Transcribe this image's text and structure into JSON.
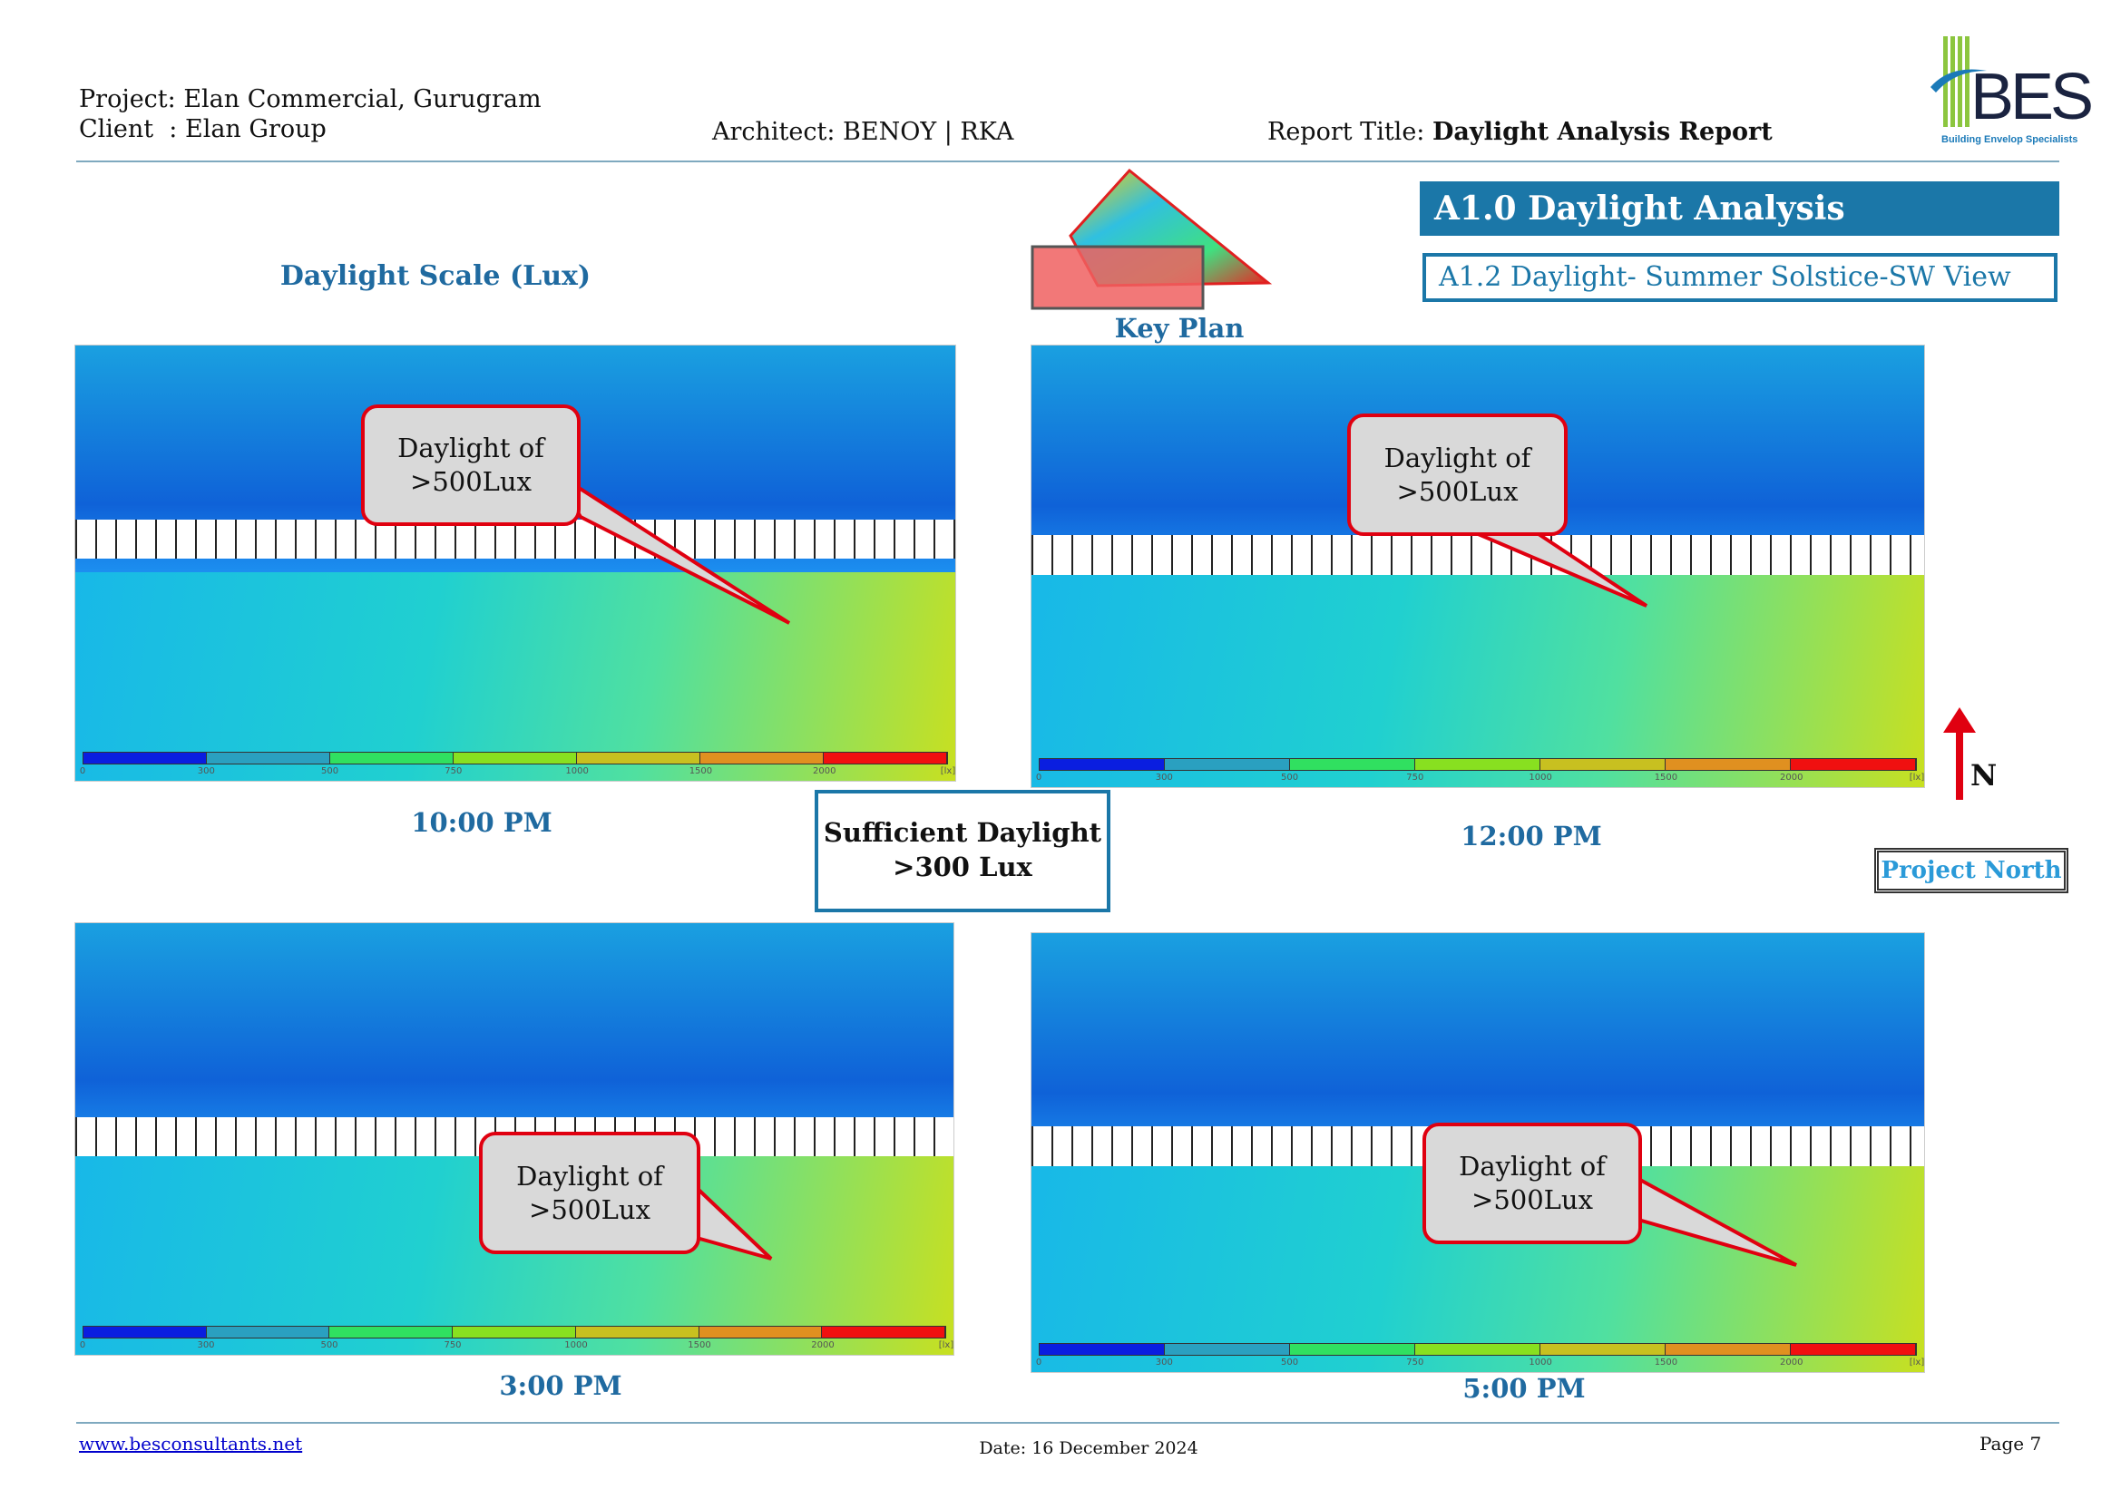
{
  "header": {
    "project": "Project: Elan Commercial, Gurugram",
    "client": "Client  : Elan Group",
    "architect": "Architect: BENOY | RKA",
    "report_label": "Report Title: ",
    "report_title": "Daylight Analysis Report"
  },
  "logo": {
    "text": "BES",
    "tagline": "Building Envelop Specialists"
  },
  "section": {
    "title": "A1.0 Daylight Analysis",
    "subtitle": "A1.2 Daylight- Summer Solstice-SW View"
  },
  "daylight_scale_label": "Daylight Scale (Lux)",
  "key_plan_label": "Key Plan",
  "scale": {
    "labels": [
      "0",
      "300",
      "500",
      "750",
      "1000",
      "1500",
      "2000",
      "[lx]"
    ],
    "colors": [
      "#0a1ee0",
      "#2aa0c0",
      "#30e060",
      "#88e020",
      "#c8c020",
      "#e09020",
      "#f01010"
    ]
  },
  "panels": [
    {
      "time": "10:00 PM",
      "callout_line1": "Daylight of",
      "callout_line2": ">500Lux"
    },
    {
      "time": "12:00 PM",
      "callout_line1": "Daylight of",
      "callout_line2": ">500Lux"
    },
    {
      "time": "3:00 PM",
      "callout_line1": "Daylight of",
      "callout_line2": ">500Lux"
    },
    {
      "time": "5:00 PM",
      "callout_line1": "Daylight of",
      "callout_line2": ">500Lux"
    }
  ],
  "sufficient": {
    "line1": "Sufficient Daylight",
    "line2": ">300 Lux"
  },
  "north": {
    "letter": "N",
    "project_north": "Project North"
  },
  "footer": {
    "website": "www.besconsultants.net",
    "date": "Date: 16 December 2024",
    "page": "Page 7"
  }
}
